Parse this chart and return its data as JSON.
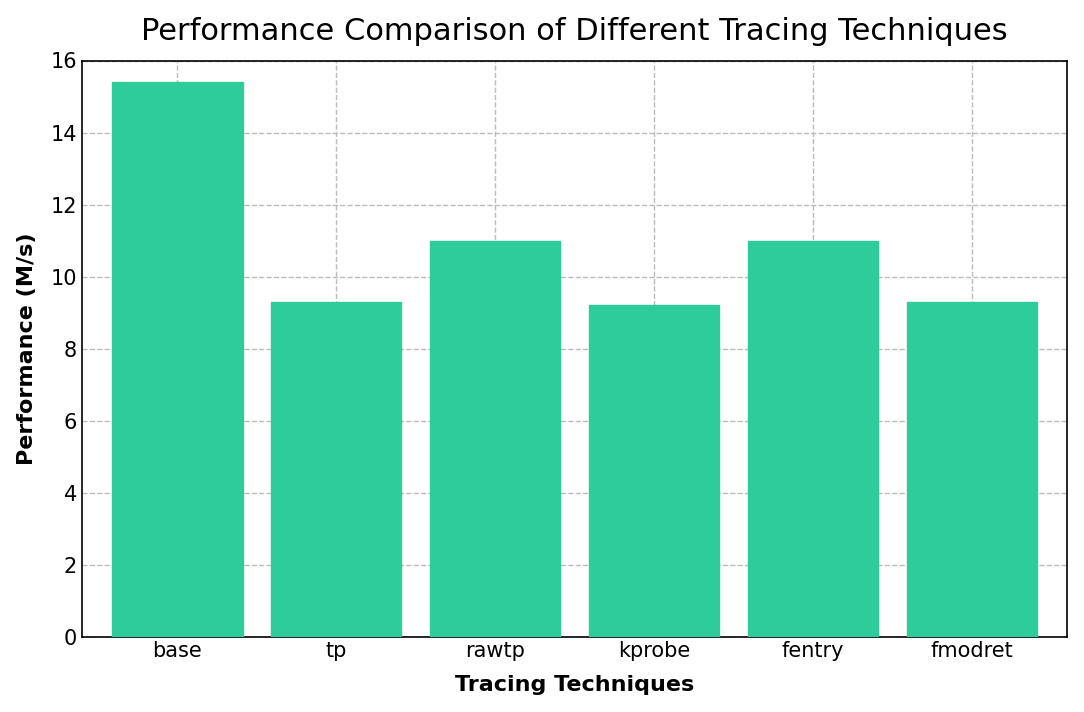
{
  "title": "Performance Comparison of Different Tracing Techniques",
  "xlabel": "Tracing Techniques",
  "ylabel": "Performance (M/s)",
  "categories": [
    "base",
    "tp",
    "rawtp",
    "kprobe",
    "fentry",
    "fmodret"
  ],
  "values": [
    15.4,
    9.3,
    11.0,
    9.2,
    11.0,
    9.3
  ],
  "bar_color": "#2ecc9a",
  "ylim": [
    0,
    16
  ],
  "yticks": [
    0,
    2,
    4,
    6,
    8,
    10,
    12,
    14,
    16
  ],
  "title_fontsize": 22,
  "label_fontsize": 16,
  "tick_fontsize": 15,
  "bar_width": 0.82,
  "grid_color": "#bbbbbb",
  "grid_linestyle": "--",
  "background_color": "#ffffff",
  "spine_color": "#000000"
}
